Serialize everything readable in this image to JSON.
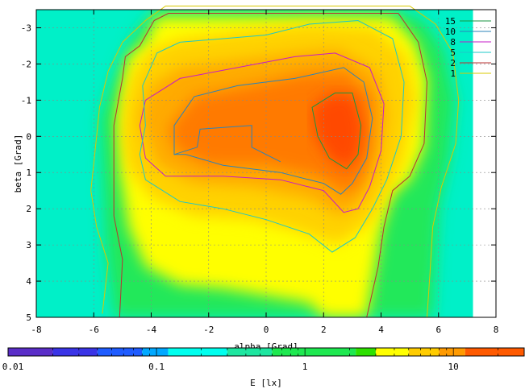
{
  "chart_data": {
    "type": "heatmap",
    "title": "",
    "xlabel": "alpha [Grad]",
    "ylabel": "beta [Grad]",
    "xlim": [
      -8,
      8
    ],
    "ylim": [
      -3.5,
      5
    ],
    "y_inverted": true,
    "x_ticks": [
      -8,
      -6,
      -4,
      -2,
      0,
      2,
      4,
      6,
      8
    ],
    "y_ticks": [
      -3,
      -2,
      -1,
      0,
      1,
      2,
      3,
      4,
      5
    ],
    "grid": true,
    "legend_position": "top-right",
    "contour_levels": [
      {
        "label": "15",
        "value": 15,
        "color": "#1a9641"
      },
      {
        "label": "10",
        "value": 10,
        "color": "#2b83ba"
      },
      {
        "label": "8",
        "value": 8,
        "color": "#c51bc9"
      },
      {
        "label": "5",
        "value": 5,
        "color": "#1ec8c8"
      },
      {
        "label": "2",
        "value": 2,
        "color": "#b83232"
      },
      {
        "label": "1",
        "value": 1,
        "color": "#d8c800"
      }
    ],
    "colorbar": {
      "label": "E [lx]",
      "scale": "log",
      "range": [
        0.01,
        30
      ],
      "tick_labels": [
        "0.01",
        "0.1",
        "1",
        "10"
      ],
      "tick_values": [
        0.01,
        0.1,
        1,
        10
      ],
      "colors": [
        "#5a2ec8",
        "#1f3cff",
        "#00a8ff",
        "#00ffee",
        "#1ee6a0",
        "#1ee850",
        "#2ee000",
        "#ffff00",
        "#ffcc00",
        "#ff9a00",
        "#ff6600",
        "#ff2a00"
      ]
    },
    "peak": {
      "alpha": 2.6,
      "beta": 0.2,
      "value": 20
    }
  }
}
